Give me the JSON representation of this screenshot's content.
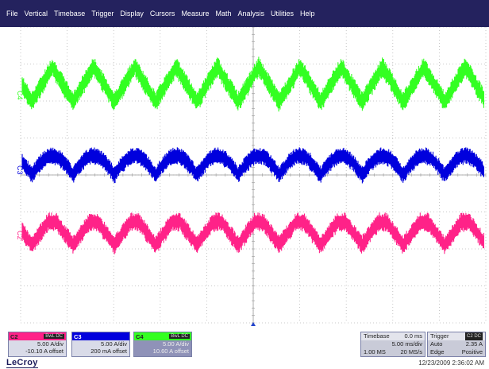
{
  "menu": [
    "File",
    "Vertical",
    "Timebase",
    "Trigger",
    "Display",
    "Cursors",
    "Measure",
    "Math",
    "Analysis",
    "Utilities",
    "Help"
  ],
  "traces": [
    {
      "label": "C4",
      "color": "#33ff22",
      "level": "top"
    },
    {
      "label": "C3",
      "color": "#0000dd",
      "level": "middle"
    },
    {
      "label": "C2",
      "color": "#ff2288",
      "level": "bottom"
    }
  ],
  "channels": {
    "c2": {
      "name": "C2",
      "badge": "BwL DC",
      "scale": "5.00 A/div",
      "offset": "-10.10 A offset",
      "color": "#ff2288"
    },
    "c3": {
      "name": "C3",
      "badge": "",
      "scale": "5.00 A/div",
      "offset": "200 mA offset",
      "color": "#0000dd"
    },
    "c4": {
      "name": "C4",
      "badge": "BwL DC",
      "scale": "5.00 A/div",
      "offset": "10.60 A offset",
      "color": "#33ff22"
    }
  },
  "timebase": {
    "title": "Timebase",
    "delay": "0.0 ms",
    "per_div": "5.00 ms/div",
    "samples": "1.00 MS",
    "rate": "20 MS/s"
  },
  "trigger": {
    "title": "Trigger",
    "badge": "C2 DC",
    "mode": "Auto",
    "level": "2.35 A",
    "type": "Edge",
    "slope": "Positive"
  },
  "brand": "LeCroy",
  "datetime": "12/23/2009 2:36:02 AM"
}
